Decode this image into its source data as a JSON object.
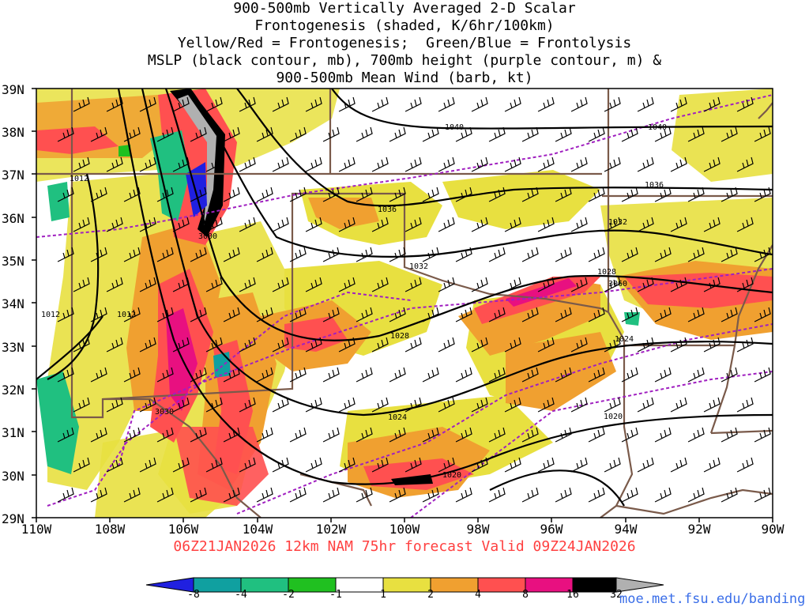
{
  "title_lines": [
    "900-500mb Vertically Averaged 2-D Scalar",
    "Frontogenesis (shaded, K/6hr/100km)",
    "Yellow/Red = Frontogenesis;  Green/Blue = Frontolysis",
    "MSLP (black contour, mb), 700mb height (purple contour, m) &",
    "900-500mb Mean Wind (barb, kt)"
  ],
  "lat_labels": [
    "39N",
    "38N",
    "37N",
    "36N",
    "35N",
    "34N",
    "33N",
    "32N",
    "31N",
    "30N",
    "29N"
  ],
  "lon_labels": [
    "110W",
    "108W",
    "106W",
    "104W",
    "102W",
    "100W",
    "98W",
    "96W",
    "94W",
    "92W",
    "90W"
  ],
  "run_info": "06Z21JAN2026 12km NAM 75hr forecast Valid 09Z24JAN2026",
  "colorbar": {
    "labels": [
      "-8",
      "-4",
      "-2",
      "-1",
      "1",
      "2",
      "4",
      "8",
      "16",
      "32"
    ],
    "colors": [
      "#2020e0",
      "#10a0a0",
      "#20c080",
      "#20c020",
      "#ffffff",
      "#e8e040",
      "#f0a030",
      "#ff5050",
      "#e81080",
      "#000000",
      "#b0b0b0"
    ]
  },
  "isobar_labels": [
    "1040",
    "1040",
    "1036",
    "1036",
    "1032",
    "1032",
    "1028",
    "1028",
    "1024",
    "1024",
    "1020",
    "1020",
    "1012",
    "1012",
    "1012"
  ],
  "height_labels": [
    "3000",
    "3030",
    "3060"
  ],
  "url": "moe.met.fsu.edu/banding"
}
